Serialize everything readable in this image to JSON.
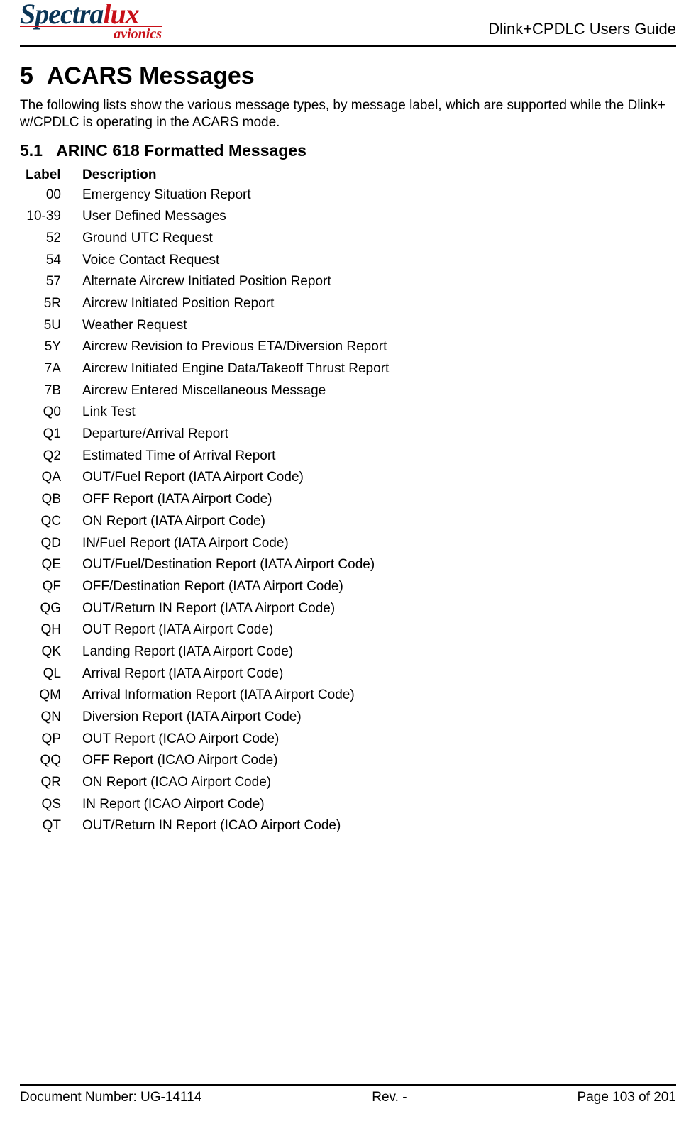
{
  "header": {
    "logo_text_a": "Spectra",
    "logo_text_b": "lux",
    "logo_subtext": "avionics",
    "doc_title": "Dlink+CPDLC Users Guide"
  },
  "section": {
    "number": "5",
    "title": "ACARS Messages",
    "intro": "The following lists show the various message types, by message label, which are supported while the Dlink+ w/CPDLC is operating in the ACARS mode."
  },
  "subsection": {
    "number": "5.1",
    "title": "ARINC 618 Formatted Messages"
  },
  "table": {
    "header_label": "Label",
    "header_desc": "Description",
    "rows": [
      {
        "label": "00",
        "desc": "Emergency Situation Report"
      },
      {
        "label": "10-39",
        "desc": "User Defined Messages"
      },
      {
        "label": "52",
        "desc": "Ground UTC Request"
      },
      {
        "label": "54",
        "desc": "Voice Contact Request"
      },
      {
        "label": "57",
        "desc": "Alternate Aircrew Initiated Position Report"
      },
      {
        "label": "5R",
        "desc": "Aircrew Initiated Position Report"
      },
      {
        "label": "5U",
        "desc": "Weather Request"
      },
      {
        "label": "5Y",
        "desc": "Aircrew Revision to Previous ETA/Diversion Report"
      },
      {
        "label": "7A",
        "desc": "Aircrew Initiated Engine Data/Takeoff Thrust Report"
      },
      {
        "label": "7B",
        "desc": "Aircrew Entered Miscellaneous Message"
      },
      {
        "label": "Q0",
        "desc": "Link Test"
      },
      {
        "label": "Q1",
        "desc": "Departure/Arrival Report"
      },
      {
        "label": "Q2",
        "desc": "Estimated Time of Arrival Report"
      },
      {
        "label": "QA",
        "desc": "OUT/Fuel Report (IATA Airport Code)"
      },
      {
        "label": "QB",
        "desc": "OFF Report (IATA Airport Code)"
      },
      {
        "label": "QC",
        "desc": "ON Report (IATA Airport Code)"
      },
      {
        "label": "QD",
        "desc": "IN/Fuel Report (IATA Airport Code)"
      },
      {
        "label": "QE",
        "desc": "OUT/Fuel/Destination Report (IATA Airport Code)"
      },
      {
        "label": "QF",
        "desc": "OFF/Destination Report (IATA Airport Code)"
      },
      {
        "label": "QG",
        "desc": "OUT/Return IN Report (IATA Airport Code)"
      },
      {
        "label": "QH",
        "desc": "OUT Report (IATA Airport Code)"
      },
      {
        "label": "QK",
        "desc": "Landing Report (IATA Airport Code)"
      },
      {
        "label": "QL",
        "desc": "Arrival Report (IATA Airport Code)"
      },
      {
        "label": "QM",
        "desc": "Arrival Information Report (IATA Airport Code)"
      },
      {
        "label": "QN",
        "desc": "Diversion Report (IATA Airport Code)"
      },
      {
        "label": "QP",
        "desc": "OUT Report (ICAO Airport Code)"
      },
      {
        "label": "QQ",
        "desc": "OFF Report (ICAO Airport Code)"
      },
      {
        "label": "QR",
        "desc": "ON Report (ICAO Airport Code)"
      },
      {
        "label": "QS",
        "desc": "IN Report (ICAO Airport Code)"
      },
      {
        "label": "QT",
        "desc": "OUT/Return IN Report (ICAO Airport Code)"
      }
    ]
  },
  "footer": {
    "docnum_label": "Document Number:  ",
    "docnum_value": "UG-14114",
    "rev": "Rev. -",
    "page": "Page 103 of 201"
  }
}
